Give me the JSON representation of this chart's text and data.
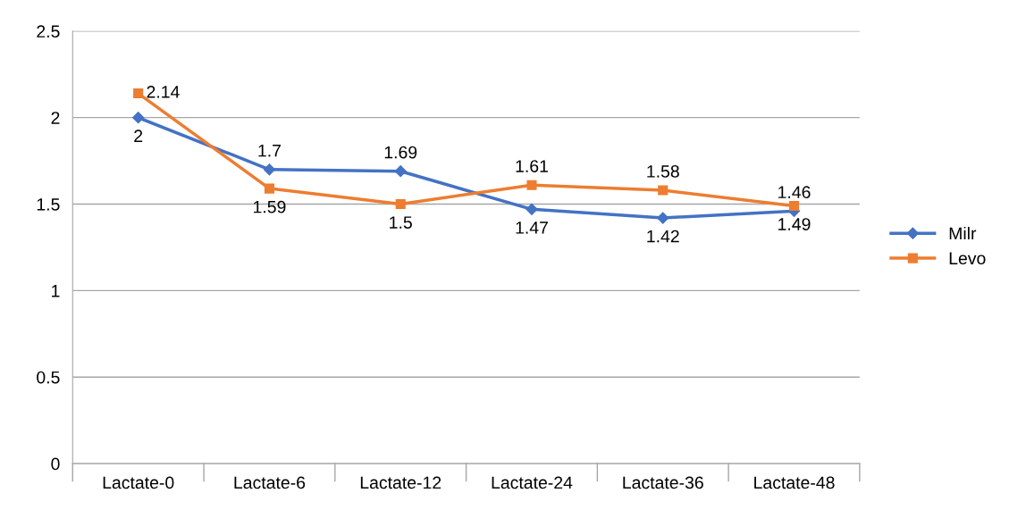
{
  "chart_data": {
    "type": "line",
    "categories": [
      "Lactate-0",
      "Lactate-6",
      "Lactate-12",
      "Lactate-24",
      "Lactate-36",
      "Lactate-48"
    ],
    "series": [
      {
        "name": "Milr",
        "color": "#4472c4",
        "marker": "diamond",
        "values": [
          2,
          1.7,
          1.69,
          1.47,
          1.42,
          1.46
        ]
      },
      {
        "name": "Levo",
        "color": "#ed7d31",
        "marker": "square",
        "values": [
          2.14,
          1.59,
          1.5,
          1.61,
          1.58,
          1.49
        ]
      }
    ],
    "ylim": [
      0,
      2.5
    ],
    "yticks": [
      0,
      0.5,
      1,
      1.5,
      2,
      2.5
    ],
    "grid": "y",
    "legend": "right",
    "data_labels": true,
    "line_style": "solid"
  }
}
